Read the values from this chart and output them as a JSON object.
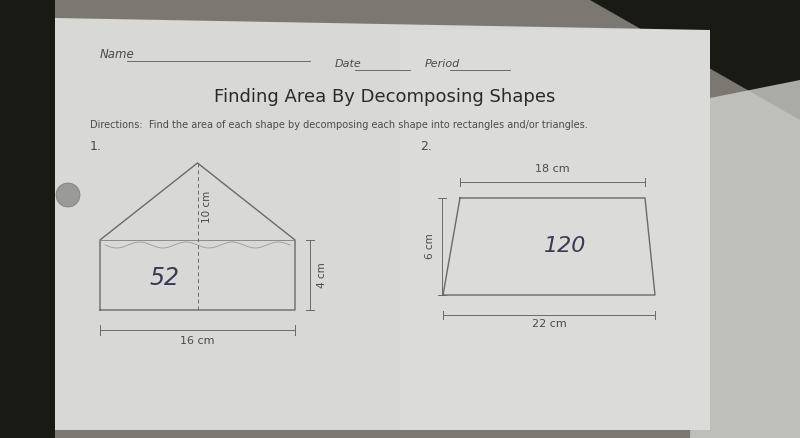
{
  "bg_color_carpet": "#8a8478",
  "bg_color_dark": "#2a2a22",
  "paper_color": "#dcdcda",
  "paper_color_bright": "#e8e8e6",
  "title": "Finding Area By Decomposing Shapes",
  "title_fontsize": 13,
  "name_label": "Name",
  "date_label": "Date",
  "period_label": "Period",
  "directions": "Directions:  Find the area of each shape by decomposing each shape into rectangles and/or triangles.",
  "problem1_label": "1.",
  "problem2_label": "2.",
  "shape1": {
    "answer": "52",
    "dim_base": "16 cm",
    "dim_height_rect": "4 cm",
    "dim_height_tri": "10 cm"
  },
  "shape2": {
    "answer": "120",
    "dim_top": "18 cm",
    "dim_bottom": "22 cm",
    "dim_height": "6 cm"
  },
  "text_color": "#4a4a4a",
  "line_color": "#6a6a6a",
  "answer_color": "#3a3a50"
}
